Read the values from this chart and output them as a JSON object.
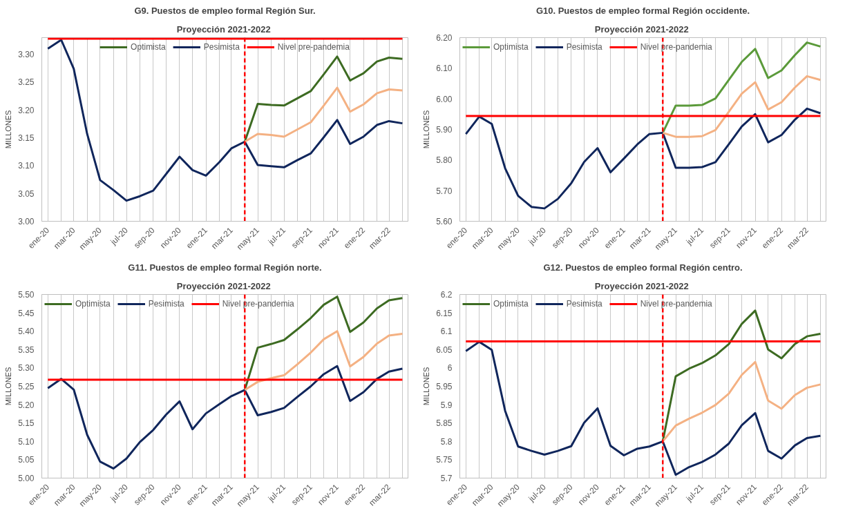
{
  "chart_data": [
    {
      "type": "line",
      "title": "G9. Puestos de empleo formal Región Sur.",
      "subtitle": "Proyección  2021-2022",
      "ylabel": "MILLONES",
      "x": [
        "2020-01",
        "2020-02",
        "2020-03",
        "2020-04",
        "2020-05",
        "2020-06",
        "2020-07",
        "2020-08",
        "2020-09",
        "2020-10",
        "2020-11",
        "2020-12",
        "2021-01",
        "2021-02",
        "2021-03",
        "2021-04",
        "2021-05",
        "2021-06",
        "2021-07",
        "2021-08",
        "2021-09",
        "2021-10",
        "2021-11",
        "2021-12",
        "2022-01",
        "2022-02",
        "2022-03",
        "2022-04"
      ],
      "xlim": [
        "2019-12-18",
        "2022-04-14"
      ],
      "xticks": [
        {
          "value": "2020-01",
          "label": "ene-20"
        },
        {
          "value": "2020-02",
          "label": null
        },
        {
          "value": "2020-03",
          "label": "mar-20"
        },
        {
          "value": "2020-04",
          "label": null
        },
        {
          "value": "2020-05",
          "label": "may-20"
        },
        {
          "value": "2020-06",
          "label": null
        },
        {
          "value": "2020-07",
          "label": "jul-20"
        },
        {
          "value": "2020-08",
          "label": null
        },
        {
          "value": "2020-09",
          "label": "sep-20"
        },
        {
          "value": "2020-10",
          "label": null
        },
        {
          "value": "2020-11",
          "label": "nov-20"
        },
        {
          "value": "2020-12",
          "label": null
        },
        {
          "value": "2021-01",
          "label": "ene-21"
        },
        {
          "value": "2021-02",
          "label": null
        },
        {
          "value": "2021-03",
          "label": "mar-21"
        },
        {
          "value": "2021-04",
          "label": null
        },
        {
          "value": "2021-05",
          "label": "may-21"
        },
        {
          "value": "2021-06",
          "label": null
        },
        {
          "value": "2021-07",
          "label": "jul-21"
        },
        {
          "value": "2021-08",
          "label": null
        },
        {
          "value": "2021-09",
          "label": "sep-21"
        },
        {
          "value": "2021-10",
          "label": null
        },
        {
          "value": "2021-11",
          "label": "nov-21"
        },
        {
          "value": "2021-12",
          "label": null
        },
        {
          "value": "2022-01",
          "label": "ene-22"
        },
        {
          "value": "2022-02",
          "label": null
        },
        {
          "value": "2022-03",
          "label": "mar-22"
        },
        {
          "value": "2022-04",
          "label": null
        }
      ],
      "ylim": [
        3.0,
        3.33
      ],
      "yticks": [
        {
          "value": 3.0,
          "label": "3.00"
        },
        {
          "value": 3.05,
          "label": "3.05"
        },
        {
          "value": 3.1,
          "label": "3.10"
        },
        {
          "value": 3.15,
          "label": "3.15"
        },
        {
          "value": 3.2,
          "label": "3.20"
        },
        {
          "value": 3.25,
          "label": "3.25"
        },
        {
          "value": 3.3,
          "label": "3.30"
        }
      ],
      "grid": "x",
      "legend": "top",
      "marker": "none",
      "line_style": "solid",
      "series": [
        {
          "name": "Optimista",
          "color": "#3d6b22",
          "values": [
            null,
            null,
            null,
            null,
            null,
            null,
            null,
            null,
            null,
            null,
            null,
            null,
            null,
            null,
            null,
            3.143,
            3.211,
            3.209,
            3.208,
            3.221,
            3.234,
            3.264,
            3.296,
            3.253,
            3.266,
            3.287,
            3.294,
            3.292
          ]
        },
        {
          "name": "Pesimista",
          "color": "#10265c",
          "values": [
            3.31,
            3.326,
            3.274,
            3.157,
            3.074,
            3.056,
            3.037,
            3.045,
            3.055,
            3.085,
            3.116,
            3.092,
            3.082,
            3.106,
            3.131,
            3.143,
            3.101,
            3.099,
            3.097,
            3.11,
            3.122,
            3.151,
            3.182,
            3.139,
            3.152,
            3.173,
            3.18,
            3.176
          ]
        },
        {
          "color": "#f4b183",
          "values": [
            null,
            null,
            null,
            null,
            null,
            null,
            null,
            null,
            null,
            null,
            null,
            null,
            null,
            null,
            null,
            3.143,
            3.157,
            3.155,
            3.152,
            3.165,
            3.178,
            3.208,
            3.24,
            3.197,
            3.21,
            3.23,
            3.237,
            3.235
          ]
        },
        {
          "name": "Nivel pre-pandemia",
          "color": "#ff0000",
          "values": [
            3.328,
            3.328,
            3.328,
            3.328,
            3.328,
            3.328,
            3.328,
            3.328,
            3.328,
            3.328,
            3.328,
            3.328,
            3.328,
            3.328,
            3.328,
            3.328,
            3.328,
            3.328,
            3.328,
            3.328,
            3.328,
            3.328,
            3.328,
            3.328,
            3.328,
            3.328,
            3.328,
            3.328
          ]
        }
      ],
      "ref_lines": [
        {
          "axis": "x",
          "value": "2021-04",
          "color": "#ff0000",
          "line_style": "dashed"
        }
      ]
    },
    {
      "type": "line",
      "title": "G10. Puestos de empleo formal Región occidente.",
      "subtitle": "Proyección  2021-2022",
      "ylabel": "MILLONES",
      "x": [
        "2020-01",
        "2020-02",
        "2020-03",
        "2020-04",
        "2020-05",
        "2020-06",
        "2020-07",
        "2020-08",
        "2020-09",
        "2020-10",
        "2020-11",
        "2020-12",
        "2021-01",
        "2021-02",
        "2021-03",
        "2021-04",
        "2021-05",
        "2021-06",
        "2021-07",
        "2021-08",
        "2021-09",
        "2021-10",
        "2021-11",
        "2021-12",
        "2022-01",
        "2022-02",
        "2022-03",
        "2022-04"
      ],
      "xlim": [
        "2019-12-18",
        "2022-04-14"
      ],
      "xticks": [
        {
          "value": "2020-01",
          "label": "ene-20"
        },
        {
          "value": "2020-02",
          "label": null
        },
        {
          "value": "2020-03",
          "label": "mar-20"
        },
        {
          "value": "2020-04",
          "label": null
        },
        {
          "value": "2020-05",
          "label": "may-20"
        },
        {
          "value": "2020-06",
          "label": null
        },
        {
          "value": "2020-07",
          "label": "jul-20"
        },
        {
          "value": "2020-08",
          "label": null
        },
        {
          "value": "2020-09",
          "label": "sep-20"
        },
        {
          "value": "2020-10",
          "label": null
        },
        {
          "value": "2020-11",
          "label": "nov-20"
        },
        {
          "value": "2020-12",
          "label": null
        },
        {
          "value": "2021-01",
          "label": "ene-21"
        },
        {
          "value": "2021-02",
          "label": null
        },
        {
          "value": "2021-03",
          "label": "mar-21"
        },
        {
          "value": "2021-04",
          "label": null
        },
        {
          "value": "2021-05",
          "label": "may-21"
        },
        {
          "value": "2021-06",
          "label": null
        },
        {
          "value": "2021-07",
          "label": "jul-21"
        },
        {
          "value": "2021-08",
          "label": null
        },
        {
          "value": "2021-09",
          "label": "sep-21"
        },
        {
          "value": "2021-10",
          "label": null
        },
        {
          "value": "2021-11",
          "label": "nov-21"
        },
        {
          "value": "2021-12",
          "label": null
        },
        {
          "value": "2022-01",
          "label": "ene-22"
        },
        {
          "value": "2022-02",
          "label": null
        },
        {
          "value": "2022-03",
          "label": "mar-22"
        },
        {
          "value": "2022-04",
          "label": null
        }
      ],
      "ylim": [
        5.6,
        6.2
      ],
      "yticks": [
        {
          "value": 5.6,
          "label": "5.60"
        },
        {
          "value": 5.7,
          "label": "5.70"
        },
        {
          "value": 5.8,
          "label": "5.80"
        },
        {
          "value": 5.9,
          "label": "5.90"
        },
        {
          "value": 6.0,
          "label": "6.00"
        },
        {
          "value": 6.1,
          "label": "6.10"
        },
        {
          "value": 6.2,
          "label": "6.20"
        }
      ],
      "grid": "x",
      "legend": "top left",
      "marker": "none",
      "line_style": "solid",
      "series": [
        {
          "name": "Optimista",
          "color": "#5b9a3a",
          "values": [
            null,
            null,
            null,
            null,
            null,
            null,
            null,
            null,
            null,
            null,
            null,
            null,
            null,
            null,
            null,
            5.889,
            5.978,
            5.978,
            5.98,
            6.001,
            6.062,
            6.121,
            6.163,
            6.068,
            6.093,
            6.143,
            6.184,
            6.171
          ]
        },
        {
          "name": "Pesimista",
          "color": "#10265c",
          "values": [
            5.885,
            5.942,
            5.918,
            5.773,
            5.683,
            5.647,
            5.642,
            5.673,
            5.724,
            5.794,
            5.839,
            5.76,
            5.805,
            5.851,
            5.885,
            5.889,
            5.775,
            5.775,
            5.777,
            5.793,
            5.852,
            5.91,
            5.95,
            5.858,
            5.882,
            5.932,
            5.968,
            5.953
          ]
        },
        {
          "color": "#f4b183",
          "values": [
            null,
            null,
            null,
            null,
            null,
            null,
            null,
            null,
            null,
            null,
            null,
            null,
            null,
            null,
            null,
            5.889,
            5.876,
            5.876,
            5.878,
            5.898,
            5.958,
            6.017,
            6.054,
            5.965,
            5.989,
            6.037,
            6.074,
            6.062
          ]
        },
        {
          "name": "Nivel pre-pandemia",
          "color": "#ff0000",
          "values": [
            5.944,
            5.944,
            5.944,
            5.944,
            5.944,
            5.944,
            5.944,
            5.944,
            5.944,
            5.944,
            5.944,
            5.944,
            5.944,
            5.944,
            5.944,
            5.944,
            5.944,
            5.944,
            5.944,
            5.944,
            5.944,
            5.944,
            5.944,
            5.944,
            5.944,
            5.944,
            5.944,
            5.944
          ]
        }
      ],
      "ref_lines": [
        {
          "axis": "x",
          "value": "2021-04",
          "color": "#ff0000",
          "line_style": "dashed"
        }
      ]
    },
    {
      "type": "line",
      "title": "G11. Puestos de empleo formal Región norte.",
      "subtitle": "Proyección  2021-2022",
      "ylabel": "MILLONES",
      "x": [
        "2020-01",
        "2020-02",
        "2020-03",
        "2020-04",
        "2020-05",
        "2020-06",
        "2020-07",
        "2020-08",
        "2020-09",
        "2020-10",
        "2020-11",
        "2020-12",
        "2021-01",
        "2021-02",
        "2021-03",
        "2021-04",
        "2021-05",
        "2021-06",
        "2021-07",
        "2021-08",
        "2021-09",
        "2021-10",
        "2021-11",
        "2021-12",
        "2022-01",
        "2022-02",
        "2022-03",
        "2022-04"
      ],
      "xlim": [
        "2019-12-18",
        "2022-04-14"
      ],
      "xticks": [
        {
          "value": "2020-01",
          "label": "ene-20"
        },
        {
          "value": "2020-02",
          "label": null
        },
        {
          "value": "2020-03",
          "label": "mar-20"
        },
        {
          "value": "2020-04",
          "label": null
        },
        {
          "value": "2020-05",
          "label": "may-20"
        },
        {
          "value": "2020-06",
          "label": null
        },
        {
          "value": "2020-07",
          "label": "jul-20"
        },
        {
          "value": "2020-08",
          "label": null
        },
        {
          "value": "2020-09",
          "label": "sep-20"
        },
        {
          "value": "2020-10",
          "label": null
        },
        {
          "value": "2020-11",
          "label": "nov-20"
        },
        {
          "value": "2020-12",
          "label": null
        },
        {
          "value": "2021-01",
          "label": "ene-21"
        },
        {
          "value": "2021-02",
          "label": null
        },
        {
          "value": "2021-03",
          "label": "mar-21"
        },
        {
          "value": "2021-04",
          "label": null
        },
        {
          "value": "2021-05",
          "label": "may-21"
        },
        {
          "value": "2021-06",
          "label": null
        },
        {
          "value": "2021-07",
          "label": "jul-21"
        },
        {
          "value": "2021-08",
          "label": null
        },
        {
          "value": "2021-09",
          "label": "sep-21"
        },
        {
          "value": "2021-10",
          "label": null
        },
        {
          "value": "2021-11",
          "label": "nov-21"
        },
        {
          "value": "2021-12",
          "label": null
        },
        {
          "value": "2022-01",
          "label": "ene-22"
        },
        {
          "value": "2022-02",
          "label": null
        },
        {
          "value": "2022-03",
          "label": "mar-22"
        },
        {
          "value": "2022-04",
          "label": null
        }
      ],
      "ylim": [
        5.0,
        5.5
      ],
      "yticks": [
        {
          "value": 5.0,
          "label": "5.00"
        },
        {
          "value": 5.05,
          "label": "5.05"
        },
        {
          "value": 5.1,
          "label": "5.10"
        },
        {
          "value": 5.15,
          "label": "5.15"
        },
        {
          "value": 5.2,
          "label": "5.20"
        },
        {
          "value": 5.25,
          "label": "5.25"
        },
        {
          "value": 5.3,
          "label": "5.30"
        },
        {
          "value": 5.35,
          "label": "5.35"
        },
        {
          "value": 5.4,
          "label": "5.40"
        },
        {
          "value": 5.45,
          "label": "5.45"
        },
        {
          "value": 5.5,
          "label": "5.50"
        }
      ],
      "grid": "x",
      "legend": "top left",
      "marker": "none",
      "line_style": "solid",
      "series": [
        {
          "name": "Optimista",
          "color": "#3d6b22",
          "values": [
            null,
            null,
            null,
            null,
            null,
            null,
            null,
            null,
            null,
            null,
            null,
            null,
            null,
            null,
            null,
            5.24,
            5.355,
            5.365,
            5.376,
            5.405,
            5.436,
            5.472,
            5.494,
            5.398,
            5.424,
            5.462,
            5.484,
            5.49
          ]
        },
        {
          "name": "Pesimista",
          "color": "#10265c",
          "values": [
            5.245,
            5.27,
            5.241,
            5.118,
            5.045,
            5.026,
            5.053,
            5.098,
            5.131,
            5.173,
            5.209,
            5.133,
            5.176,
            5.201,
            5.223,
            5.24,
            5.171,
            5.18,
            5.191,
            5.221,
            5.25,
            5.283,
            5.305,
            5.21,
            5.234,
            5.27,
            5.29,
            5.298
          ]
        },
        {
          "color": "#f4b183",
          "values": [
            null,
            null,
            null,
            null,
            null,
            null,
            null,
            null,
            null,
            null,
            null,
            null,
            null,
            null,
            null,
            5.24,
            5.262,
            5.272,
            5.28,
            5.31,
            5.342,
            5.378,
            5.4,
            5.304,
            5.33,
            5.366,
            5.388,
            5.393
          ]
        },
        {
          "name": "Nivel pre-pandemia",
          "color": "#ff0000",
          "values": [
            5.268,
            5.268,
            5.268,
            5.268,
            5.268,
            5.268,
            5.268,
            5.268,
            5.268,
            5.268,
            5.268,
            5.268,
            5.268,
            5.268,
            5.268,
            5.268,
            5.268,
            5.268,
            5.268,
            5.268,
            5.268,
            5.268,
            5.268,
            5.268,
            5.268,
            5.268,
            5.268,
            5.268
          ]
        }
      ],
      "ref_lines": [
        {
          "axis": "x",
          "value": "2021-04",
          "color": "#ff0000",
          "line_style": "dashed"
        }
      ]
    },
    {
      "type": "line",
      "title": "G12. Puestos de empleo formal Región centro.",
      "subtitle": "Proyección  2021-2022",
      "ylabel": "MILLONES",
      "x": [
        "2020-01",
        "2020-02",
        "2020-03",
        "2020-04",
        "2020-05",
        "2020-06",
        "2020-07",
        "2020-08",
        "2020-09",
        "2020-10",
        "2020-11",
        "2020-12",
        "2021-01",
        "2021-02",
        "2021-03",
        "2021-04",
        "2021-05",
        "2021-06",
        "2021-07",
        "2021-08",
        "2021-09",
        "2021-10",
        "2021-11",
        "2021-12",
        "2022-01",
        "2022-02",
        "2022-03",
        "2022-04"
      ],
      "xlim": [
        "2019-12-18",
        "2022-04-14"
      ],
      "xticks": [
        {
          "value": "2020-01",
          "label": "ene-20"
        },
        {
          "value": "2020-02",
          "label": null
        },
        {
          "value": "2020-03",
          "label": "mar-20"
        },
        {
          "value": "2020-04",
          "label": null
        },
        {
          "value": "2020-05",
          "label": "may-20"
        },
        {
          "value": "2020-06",
          "label": null
        },
        {
          "value": "2020-07",
          "label": "jul-20"
        },
        {
          "value": "2020-08",
          "label": null
        },
        {
          "value": "2020-09",
          "label": "sep-20"
        },
        {
          "value": "2020-10",
          "label": null
        },
        {
          "value": "2020-11",
          "label": "nov-20"
        },
        {
          "value": "2020-12",
          "label": null
        },
        {
          "value": "2021-01",
          "label": "ene-21"
        },
        {
          "value": "2021-02",
          "label": null
        },
        {
          "value": "2021-03",
          "label": "mar-21"
        },
        {
          "value": "2021-04",
          "label": null
        },
        {
          "value": "2021-05",
          "label": "may-21"
        },
        {
          "value": "2021-06",
          "label": null
        },
        {
          "value": "2021-07",
          "label": "jul-21"
        },
        {
          "value": "2021-08",
          "label": null
        },
        {
          "value": "2021-09",
          "label": "sep-21"
        },
        {
          "value": "2021-10",
          "label": null
        },
        {
          "value": "2021-11",
          "label": "nov-21"
        },
        {
          "value": "2021-12",
          "label": null
        },
        {
          "value": "2022-01",
          "label": "ene-22"
        },
        {
          "value": "2022-02",
          "label": null
        },
        {
          "value": "2022-03",
          "label": "mar-22"
        },
        {
          "value": "2022-04",
          "label": null
        }
      ],
      "ylim": [
        5.7,
        6.2
      ],
      "yticks": [
        5.7,
        5.75,
        5.8,
        5.85,
        5.9,
        5.95,
        6,
        6.05,
        6.1,
        6.15,
        6.2
      ],
      "grid": "x",
      "legend": "top left",
      "marker": "none",
      "line_style": "solid",
      "series": [
        {
          "name": "Optimista",
          "color": "#3d6b22",
          "values": [
            null,
            null,
            null,
            null,
            null,
            null,
            null,
            null,
            null,
            null,
            null,
            null,
            null,
            null,
            null,
            5.8,
            5.977,
            5.998,
            6.013,
            6.034,
            6.065,
            6.12,
            6.156,
            6.05,
            6.026,
            6.065,
            6.086,
            6.093
          ]
        },
        {
          "name": "Pesimista",
          "color": "#10265c",
          "values": [
            6.046,
            6.071,
            6.049,
            5.883,
            5.786,
            5.774,
            5.764,
            5.774,
            5.787,
            5.851,
            5.89,
            5.788,
            5.762,
            5.78,
            5.786,
            5.8,
            5.709,
            5.73,
            5.744,
            5.764,
            5.794,
            5.844,
            5.877,
            5.774,
            5.753,
            5.789,
            5.809,
            5.815
          ]
        },
        {
          "color": "#f4b183",
          "values": [
            null,
            null,
            null,
            null,
            null,
            null,
            null,
            null,
            null,
            null,
            null,
            null,
            null,
            null,
            null,
            5.8,
            5.843,
            5.862,
            5.878,
            5.899,
            5.93,
            5.981,
            6.016,
            5.911,
            5.889,
            5.926,
            5.946,
            5.955
          ]
        },
        {
          "name": "Nivel pre-pandemia",
          "color": "#ff0000",
          "values": [
            6.072,
            6.072,
            6.072,
            6.072,
            6.072,
            6.072,
            6.072,
            6.072,
            6.072,
            6.072,
            6.072,
            6.072,
            6.072,
            6.072,
            6.072,
            6.072,
            6.072,
            6.072,
            6.072,
            6.072,
            6.072,
            6.072,
            6.072,
            6.072,
            6.072,
            6.072,
            6.072,
            6.072
          ]
        }
      ],
      "ref_lines": [
        {
          "axis": "x",
          "value": "2021-04",
          "color": "#ff0000",
          "line_style": "dashed"
        }
      ]
    }
  ]
}
